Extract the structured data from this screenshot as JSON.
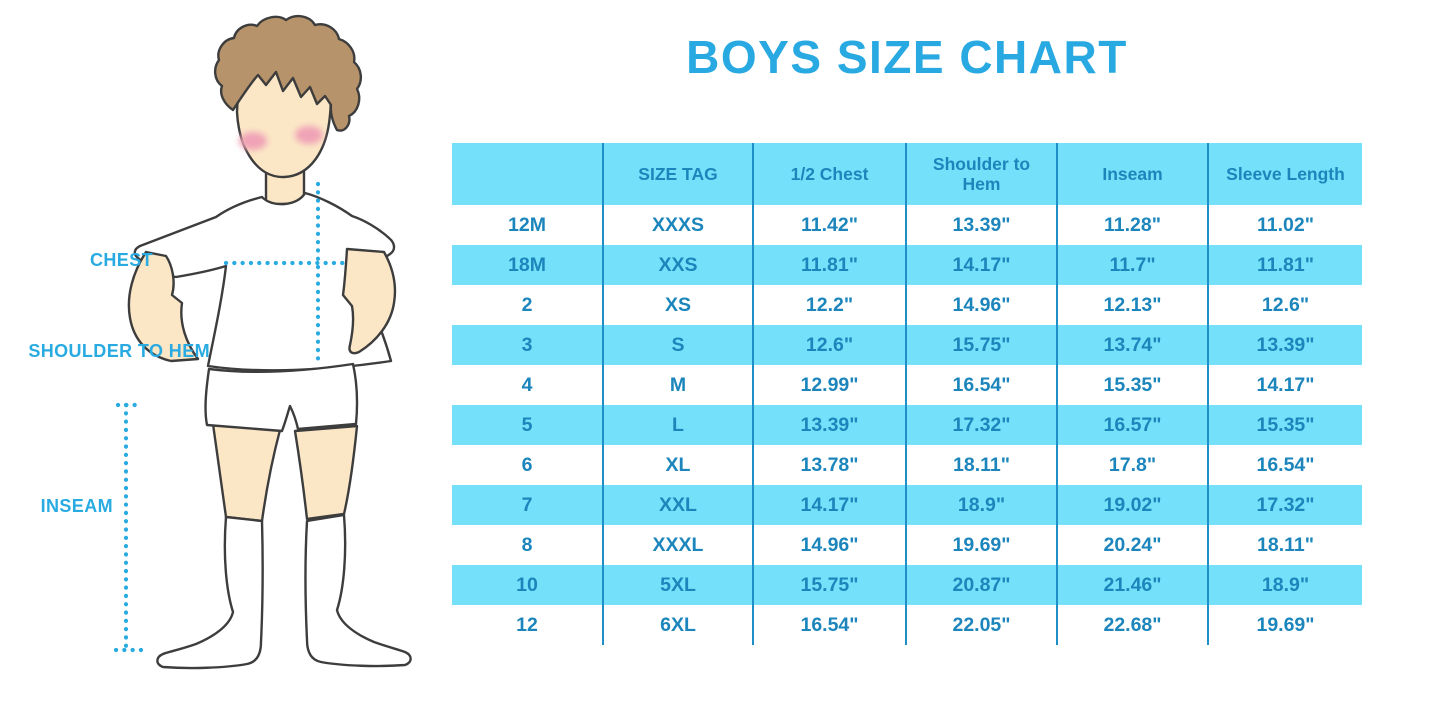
{
  "title": "BOYS SIZE CHART",
  "figure": {
    "labels": {
      "chest": "CHEST",
      "shoulder_to_hem": "SHOULDER TO HEM",
      "inseam": "INSEAM"
    }
  },
  "colors": {
    "accent_blue": "#29abe2",
    "band_blue": "#75e0f9",
    "table_text_blue": "#1c86bc",
    "grid_line_blue": "#1f8fc7",
    "skin": "#fbe7c6",
    "hair": "#b6936a",
    "blush": "#f0a3b6"
  },
  "chart_data": {
    "type": "table",
    "title": "BOYS SIZE CHART",
    "measurement_unit": "inches",
    "columns": [
      "",
      "SIZE TAG",
      "1/2 Chest",
      "Shoulder to Hem",
      "Inseam",
      "Sleeve Length"
    ],
    "rows": [
      [
        "12M",
        "XXXS",
        "11.42\"",
        "13.39\"",
        "11.28\"",
        "11.02\""
      ],
      [
        "18M",
        "XXS",
        "11.81\"",
        "14.17\"",
        "11.7\"",
        "11.81\""
      ],
      [
        "2",
        "XS",
        "12.2\"",
        "14.96\"",
        "12.13\"",
        "12.6\""
      ],
      [
        "3",
        "S",
        "12.6\"",
        "15.75\"",
        "13.74\"",
        "13.39\""
      ],
      [
        "4",
        "M",
        "12.99\"",
        "16.54\"",
        "15.35\"",
        "14.17\""
      ],
      [
        "5",
        "L",
        "13.39\"",
        "17.32\"",
        "16.57\"",
        "15.35\""
      ],
      [
        "6",
        "XL",
        "13.78\"",
        "18.11\"",
        "17.8\"",
        "16.54\""
      ],
      [
        "7",
        "XXL",
        "14.17\"",
        "18.9\"",
        "19.02\"",
        "17.32\""
      ],
      [
        "8",
        "XXXL",
        "14.96\"",
        "19.69\"",
        "20.24\"",
        "18.11\""
      ],
      [
        "10",
        "5XL",
        "15.75\"",
        "20.87\"",
        "21.46\"",
        "18.9\""
      ],
      [
        "12",
        "6XL",
        "16.54\"",
        "22.05\"",
        "22.68\"",
        "19.69\""
      ]
    ]
  }
}
